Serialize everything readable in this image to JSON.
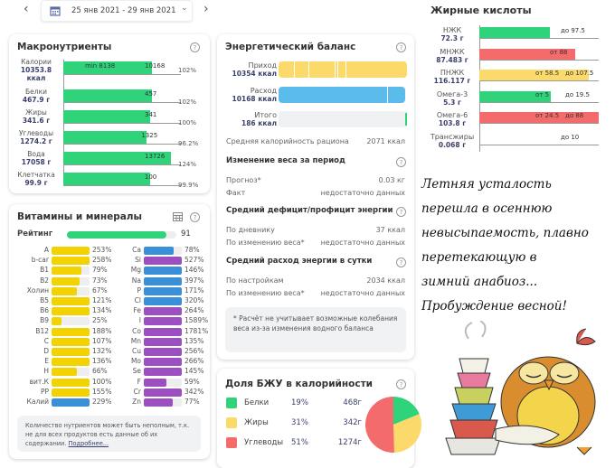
{
  "toolbar": {
    "date_range": "25 янв 2021 - 29 янв 2021",
    "prev": "‹",
    "next": "›",
    "dropdown": "⌄"
  },
  "macros": {
    "title": "Макронутриенты",
    "help": "?",
    "rows": [
      {
        "name": "Калории",
        "value": "10353.8",
        "unit": "ккал",
        "min": "min 8138",
        "target": "10168",
        "pct": "102%",
        "pct_value": 102
      },
      {
        "name": "Белки",
        "value": "467.9 г",
        "target": "457",
        "pct": "102%",
        "pct_value": 102
      },
      {
        "name": "Жиры",
        "value": "341.6 г",
        "target": "341",
        "pct": "100%",
        "pct_value": 100
      },
      {
        "name": "Углеводы",
        "value": "1274.2 г",
        "target": "1325",
        "pct": "96.2%",
        "pct_value": 96.2
      },
      {
        "name": "Вода",
        "value": "17058 г",
        "target": "13726",
        "pct": "124%",
        "pct_value": 124
      },
      {
        "name": "Клетчатка",
        "value": "99.9 г",
        "target": "100",
        "pct": "99.9%",
        "pct_value": 99.9
      }
    ]
  },
  "vitamins": {
    "title": "Витамины и минералы",
    "help": "?",
    "rating_label": "Рейтинг",
    "rating": "91",
    "rating_value": 91,
    "left": [
      [
        "A",
        "253%",
        253,
        "#f2d200"
      ],
      [
        "b-car",
        "258%",
        258,
        "#f2d200"
      ],
      [
        "B1",
        "79%",
        79,
        "#f2d200"
      ],
      [
        "B2",
        "73%",
        73,
        "#f2d200"
      ],
      [
        "Холин",
        "67%",
        67,
        "#f2d200"
      ],
      [
        "B5",
        "121%",
        121,
        "#f2d200"
      ],
      [
        "B6",
        "134%",
        134,
        "#f2d200"
      ],
      [
        "B9",
        "25%",
        25,
        "#f2d200"
      ],
      [
        "B12",
        "188%",
        188,
        "#f2d200"
      ],
      [
        "C",
        "107%",
        107,
        "#f2d200"
      ],
      [
        "D",
        "132%",
        132,
        "#f2d200"
      ],
      [
        "E",
        "136%",
        136,
        "#f2d200"
      ],
      [
        "H",
        "66%",
        66,
        "#f2d200"
      ],
      [
        "вит.К",
        "100%",
        100,
        "#f2d200"
      ],
      [
        "PP",
        "155%",
        155,
        "#f2d200"
      ],
      [
        "Калий",
        "229%",
        229,
        "#3a8fd9"
      ]
    ],
    "right": [
      [
        "Ca",
        "78%",
        78,
        "#3a8fd9"
      ],
      [
        "Si",
        "527%",
        527,
        "#9b4fc0"
      ],
      [
        "Mg",
        "146%",
        146,
        "#3a8fd9"
      ],
      [
        "Na",
        "397%",
        397,
        "#3a8fd9"
      ],
      [
        "P",
        "171%",
        171,
        "#3a8fd9"
      ],
      [
        "Cl",
        "320%",
        320,
        "#3a8fd9"
      ],
      [
        "Fe",
        "264%",
        264,
        "#9b4fc0"
      ],
      [
        "I",
        "1589%",
        1589,
        "#9b4fc0"
      ],
      [
        "Co",
        "1781%",
        1781,
        "#9b4fc0"
      ],
      [
        "Mn",
        "135%",
        135,
        "#9b4fc0"
      ],
      [
        "Cu",
        "256%",
        256,
        "#9b4fc0"
      ],
      [
        "Mo",
        "266%",
        266,
        "#9b4fc0"
      ],
      [
        "Se",
        "145%",
        145,
        "#9b4fc0"
      ],
      [
        "F",
        "59%",
        59,
        "#9b4fc0"
      ],
      [
        "Cr",
        "342%",
        342,
        "#9b4fc0"
      ],
      [
        "Zn",
        "77%",
        77,
        "#9b4fc0"
      ]
    ],
    "note": "Количество нутриентов может быть неполным, т.к. не для всех продуктов есть данные об их содержании.",
    "more_link": "Подробнее..."
  },
  "energy": {
    "title": "Энергетический баланс",
    "help": "?",
    "income_label": "Приход",
    "income": "10354 ккал",
    "expense_label": "Расход",
    "expense": "10168 ккал",
    "total_label": "Итого",
    "total": "186 ккал",
    "avg_label": "Средняя калорийность рациона",
    "avg": "2071 ккал",
    "weight_title": "Изменение веса за период",
    "forecast_label": "Прогноз*",
    "forecast": "0.03 кг",
    "fact_label": "Факт",
    "fact": "недостаточно данных",
    "deficit_title": "Средний дефицит/профицит энергии",
    "diary_label": "По дневнику",
    "diary": "37 ккал",
    "byweight_label": "По изменению веса*",
    "byweight": "недостаточно данных",
    "spend_title": "Средний расход энергии в сутки",
    "settings_label": "По настройкам",
    "settings": "2034 ккал",
    "byweight2_label": "По изменению веса*",
    "byweight2": "недостаточно данных",
    "note": "* Расчёт не учитывает возможные колебания веса из-за изменения водного баланса"
  },
  "bju": {
    "title": "Доля БЖУ в калорийности",
    "help": "?",
    "items": [
      {
        "name": "Белки",
        "pct": "19%",
        "grams": "468г",
        "value": 19,
        "color": "#2fd47a"
      },
      {
        "name": "Жиры",
        "pct": "31%",
        "grams": "342г",
        "value": 31,
        "color": "#fbd96b"
      },
      {
        "name": "Углеводы",
        "pct": "51%",
        "grams": "1274г",
        "value": 51,
        "color": "#f46b6b"
      }
    ]
  },
  "fatty": {
    "title": "Жирные кислоты",
    "rows": [
      {
        "name": "НЖК",
        "value": "72.3 г",
        "fill": 0.59,
        "color": "#2fd47a",
        "marks": [
          "до 97.5"
        ]
      },
      {
        "name": "МНЖК",
        "value": "87.483 г",
        "fill": 0.8,
        "color": "#f46b6b",
        "marks": [
          "от 88"
        ]
      },
      {
        "name": "ПНЖК",
        "value": "116.117 г",
        "fill": 0.92,
        "color": "#fbd96b",
        "marks": [
          "от 58.5",
          "до 107.5"
        ]
      },
      {
        "name": "Омега-3",
        "value": "5.3 г",
        "fill": 0.6,
        "color": "#2fd47a",
        "marks": [
          "от 5",
          "до 19.5"
        ]
      },
      {
        "name": "Омега-6",
        "value": "103.8 г",
        "fill": 1.0,
        "color": "#f46b6b",
        "marks": [
          "от 24.5",
          "до 88"
        ]
      },
      {
        "name": "Трансжиры",
        "value": "0.068 г",
        "fill": 0,
        "color": "#2fd47a",
        "marks": [
          "до 10"
        ]
      }
    ]
  },
  "handwriting": [
    "Летняя усталость",
    "перешла в осеннюю",
    "невысыпаемость, плавно",
    "перетекающую в",
    "зимний анабиоз...",
    "Пробуждение весной!"
  ]
}
